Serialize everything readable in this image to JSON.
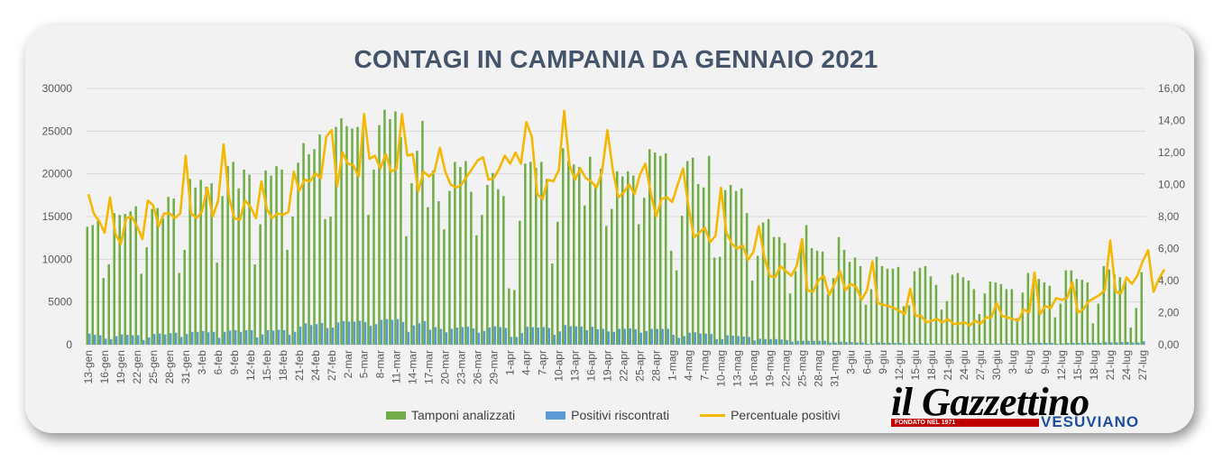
{
  "chart_data": {
    "type": "bar",
    "title": "CONTAGI IN CAMPANIA DA GENNAIO 2021",
    "y_left": {
      "min": 0,
      "max": 30000,
      "step": 5000,
      "ticks": [
        "0",
        "5000",
        "10000",
        "15000",
        "20000",
        "25000",
        "30000"
      ]
    },
    "y_right": {
      "min": 0,
      "max": 16,
      "step": 2,
      "ticks": [
        "0,00",
        "2,00",
        "4,00",
        "6,00",
        "8,00",
        "10,00",
        "12,00",
        "14,00",
        "16,00"
      ]
    },
    "x_tick_labels": [
      "13-gen",
      "16-gen",
      "19-gen",
      "22-gen",
      "25-gen",
      "28-gen",
      "31-gen",
      "3-feb",
      "6-feb",
      "9-feb",
      "12-feb",
      "15-feb",
      "18-feb",
      "21-feb",
      "24-feb",
      "27-feb",
      "2-mar",
      "5-mar",
      "8-mar",
      "11-mar",
      "14-mar",
      "17-mar",
      "20-mar",
      "23-mar",
      "26-mar",
      "29-mar",
      "1-apr",
      "4-apr",
      "7-apr",
      "10-apr",
      "13-apr",
      "16-apr",
      "19-apr",
      "22-apr",
      "25-apr",
      "28-apr",
      "1-mag",
      "4-mag",
      "7-mag",
      "10-mag",
      "13-mag",
      "16-mag",
      "19-mag",
      "22-mag",
      "25-mag",
      "28-mag",
      "31-mag",
      "3-giu",
      "6-giu",
      "9-giu",
      "12-giu",
      "15-giu",
      "18-giu",
      "21-giu",
      "24-giu",
      "27-giu",
      "30-giu",
      "3-lug",
      "6-lug",
      "9-lug",
      "12-lug",
      "15-lug",
      "18-lug",
      "21-lug",
      "24-lug",
      "27-lug"
    ],
    "series": [
      {
        "name": "Tamponi analizzati",
        "axis": "left",
        "color": "#70ad47",
        "values": [
          13800,
          14000,
          14500,
          7800,
          9400,
          15400,
          15200,
          15300,
          15600,
          16200,
          8300,
          11400,
          15900,
          16000,
          14800,
          17300,
          17100,
          8400,
          11100,
          19400,
          18400,
          19300,
          18500,
          18900,
          9600,
          17400,
          20900,
          21400,
          18300,
          20500,
          19900,
          9400,
          14100,
          20400,
          19800,
          20900,
          20500,
          11100,
          15000,
          21300,
          23600,
          22300,
          22900,
          24600,
          14700,
          15000,
          25500,
          26500,
          25600,
          25300,
          25500,
          25100,
          15200,
          20500,
          25700,
          27500,
          26400,
          27300,
          24300,
          12700,
          18900,
          22700,
          26200,
          16100,
          20400,
          16800,
          13500,
          18000,
          21400,
          20800,
          21500,
          17900,
          12800,
          15200,
          18700,
          20100,
          18200,
          17400,
          6600,
          6400,
          14500,
          21200,
          21400,
          20700,
          21400,
          19400,
          9500,
          14400,
          23000,
          21500,
          21100,
          20800,
          16300,
          22000,
          18600,
          20600,
          13900,
          15900,
          20300,
          19700,
          20300,
          19800,
          14100,
          17200,
          22900,
          22500,
          22100,
          22400,
          11000,
          8700,
          15100,
          21500,
          21900,
          18800,
          18400,
          22100,
          10200,
          10300,
          18100,
          18700,
          18000,
          18300,
          15400,
          7500,
          10400,
          14300,
          14700,
          12600,
          12600,
          11900,
          6000,
          8600,
          11700,
          14000,
          11300,
          11000,
          10900,
          5900,
          7800,
          12600,
          11100,
          9700,
          10200,
          9200,
          4700,
          6500,
          10300,
          9200,
          8900,
          8900,
          9100,
          4500,
          4600,
          8600,
          9000,
          9200,
          8000,
          7000,
          4100,
          5100,
          8200,
          8400,
          7900,
          7500,
          6500,
          3600,
          6000,
          7400,
          7300,
          7100,
          6500,
          6500,
          3100,
          6100,
          8400,
          7700,
          7700,
          7300,
          6900,
          3200,
          4800,
          8700,
          8700,
          7700,
          7600,
          7300,
          2500,
          4800,
          9200,
          8800,
          8200,
          7900,
          7400,
          2000,
          4300,
          8500
        ]
      },
      {
        "name": "Positivi riscontrati",
        "axis": "left",
        "color": "#5b9bd5",
        "values": [
          1300,
          1150,
          1100,
          700,
          650,
          1000,
          1200,
          1150,
          1100,
          1100,
          550,
          850,
          1250,
          1300,
          1200,
          1350,
          1400,
          900,
          1250,
          1500,
          1500,
          1600,
          1450,
          1500,
          800,
          1500,
          1650,
          1700,
          1500,
          1700,
          1700,
          850,
          1200,
          1700,
          1650,
          1750,
          1700,
          1150,
          1500,
          2100,
          2500,
          2300,
          2400,
          2550,
          1950,
          2000,
          2600,
          2750,
          2700,
          2700,
          2800,
          2650,
          2200,
          2400,
          2900,
          3000,
          2900,
          3000,
          2650,
          1500,
          2250,
          2500,
          2750,
          1750,
          2050,
          1850,
          1450,
          1850,
          2000,
          2050,
          2100,
          1900,
          1400,
          1600,
          2000,
          2150,
          2050,
          1950,
          900,
          900,
          1350,
          2100,
          2050,
          2000,
          2050,
          1950,
          1150,
          1550,
          2300,
          2150,
          2150,
          2100,
          1700,
          2100,
          1800,
          1850,
          1550,
          1500,
          1850,
          1850,
          1900,
          1800,
          1400,
          1600,
          1850,
          1850,
          1850,
          1850,
          1150,
          800,
          1000,
          1400,
          1450,
          1300,
          1300,
          1250,
          650,
          650,
          1100,
          1050,
          1000,
          950,
          900,
          500,
          700,
          650,
          650,
          650,
          600,
          550,
          350,
          450,
          450,
          450,
          450,
          450,
          450,
          250,
          250,
          350,
          300,
          300,
          250,
          250,
          100,
          150,
          250,
          220,
          220,
          200,
          200,
          100,
          150,
          140,
          150,
          140,
          130,
          130,
          80,
          110,
          120,
          120,
          120,
          130,
          140,
          100,
          120,
          130,
          130,
          140,
          150,
          150,
          100,
          120,
          200,
          180,
          200,
          200,
          210,
          110,
          150,
          200,
          210,
          210,
          220,
          230,
          200,
          220,
          280,
          280,
          270,
          300,
          320,
          250,
          250,
          400
        ]
      },
      {
        "name": "Percentuale positivi",
        "axis": "right",
        "color": "#f5b800",
        "type": "line",
        "values": [
          9.4,
          8.2,
          7.7,
          7.0,
          9.2,
          6.9,
          6.3,
          7.9,
          8.0,
          7.4,
          6.6,
          9.0,
          8.7,
          7.4,
          8.2,
          8.2,
          7.9,
          8.2,
          11.8,
          8.2,
          7.9,
          8.3,
          9.8,
          8.0,
          9.0,
          12.5,
          9.2,
          7.9,
          7.8,
          9.0,
          8.6,
          7.9,
          10.2,
          8.5,
          7.9,
          8.2,
          8.1,
          8.3,
          10.8,
          9.6,
          10.3,
          10.2,
          10.7,
          10.4,
          13.0,
          13.4,
          9.9,
          12.0,
          11.3,
          11.2,
          10.5,
          14.4,
          11.6,
          11.8,
          11.0,
          11.9,
          10.8,
          11.0,
          14.4,
          11.8,
          11.9,
          9.6,
          10.8,
          10.5,
          10.8,
          12.3,
          10.8,
          10.0,
          9.8,
          10.0,
          10.5,
          11.0,
          11.5,
          11.7,
          10.3,
          10.4,
          11.0,
          11.8,
          11.3,
          12.0,
          11.3,
          13.9,
          13.0,
          9.4,
          9.1,
          10.3,
          10.2,
          10.9,
          14.6,
          11.2,
          10.3,
          11.0,
          10.4,
          10.2,
          9.8,
          10.8,
          13.4,
          10.9,
          9.2,
          9.5,
          10.0,
          9.4,
          10.6,
          11.3,
          9.5,
          8.0,
          9.1,
          9.2,
          8.9,
          10.0,
          11.0,
          8.6,
          6.7,
          7.0,
          7.3,
          6.4,
          6.8,
          9.8,
          7.0,
          6.3,
          6.0,
          6.2,
          5.3,
          5.8,
          7.4,
          5.5,
          4.3,
          4.2,
          4.9,
          4.6,
          4.3,
          4.9,
          6.6,
          3.4,
          3.3,
          4.0,
          4.3,
          3.1,
          3.8,
          4.6,
          3.4,
          3.8,
          3.6,
          2.8,
          3.4,
          5.2,
          2.6,
          2.5,
          2.4,
          2.3,
          2.1,
          1.9,
          3.5,
          1.8,
          1.8,
          1.4,
          1.5,
          1.6,
          1.4,
          1.6,
          1.3,
          1.3,
          1.4,
          1.2,
          1.5,
          1.3,
          1.7,
          1.7,
          2.6,
          1.8,
          1.7,
          1.6,
          1.5,
          2.2,
          2.0,
          4.5,
          1.9,
          2.4,
          2.3,
          2.9,
          2.8,
          2.9,
          3.9,
          2.0,
          2.2,
          2.7,
          2.9,
          3.1,
          3.4,
          6.5,
          3.3,
          3.2,
          4.2,
          3.8,
          4.3,
          5.2,
          5.9,
          3.3,
          4.1,
          4.7
        ]
      }
    ],
    "legend_position": "bottom"
  },
  "legend": {
    "tamponi": "Tamponi analizzati",
    "positivi": "Positivi riscontrati",
    "percentuale": "Percentuale positivi"
  },
  "logo": {
    "main": "il Gazzettino",
    "founded": "FONDATO NEL 1971",
    "sub": "VESUVIANO"
  },
  "colors": {
    "card": "#f2f2f2",
    "title": "#44546a",
    "tamponi": "#70ad47",
    "positivi": "#5b9bd5",
    "percentuale": "#f5b800",
    "grid": "#d9d9d9"
  }
}
